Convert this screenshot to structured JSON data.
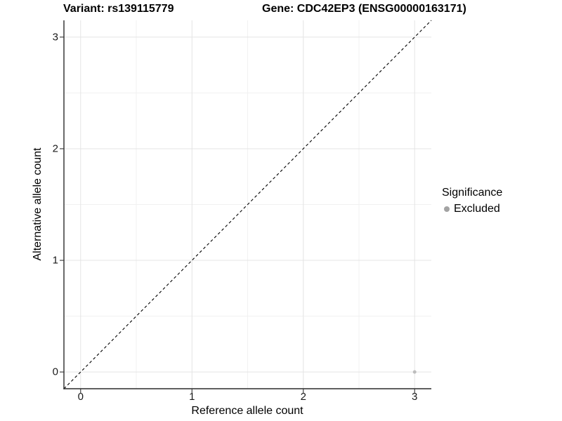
{
  "figure": {
    "background": "#ffffff"
  },
  "chart_data": {
    "type": "scatter",
    "titles": {
      "left": "Variant: rs139115779",
      "right": "Gene: CDC42EP3 (ENSG00000163171)"
    },
    "xlabel": "Reference allele count",
    "ylabel": "Alternative allele count",
    "xlim": [
      -0.15,
      3.15
    ],
    "ylim": [
      -0.15,
      3.15
    ],
    "xticks": [
      0,
      1,
      2,
      3
    ],
    "yticks": [
      0,
      1,
      2,
      3
    ],
    "xminor": [
      0.5,
      1.5,
      2.5
    ],
    "yminor": [
      0.5,
      1.5,
      2.5
    ],
    "grid": {
      "major_color": "#e4e4e4",
      "minor_color": "#f1f1f1"
    },
    "reference_line": {
      "type": "identity",
      "style": "dashed",
      "color": "#000000"
    },
    "series": [
      {
        "name": "Excluded",
        "color": "#bdbdbd",
        "marker": "circle",
        "size": 2.5,
        "points": [
          {
            "x": 3,
            "y": 0
          }
        ]
      }
    ],
    "legend": {
      "title": "Significance",
      "position": "right",
      "items": [
        {
          "label": "Excluded",
          "color": "#a3a3a3"
        }
      ]
    },
    "axis": {
      "line_color": "#2a2a2a",
      "tick_color": "#333333"
    }
  }
}
